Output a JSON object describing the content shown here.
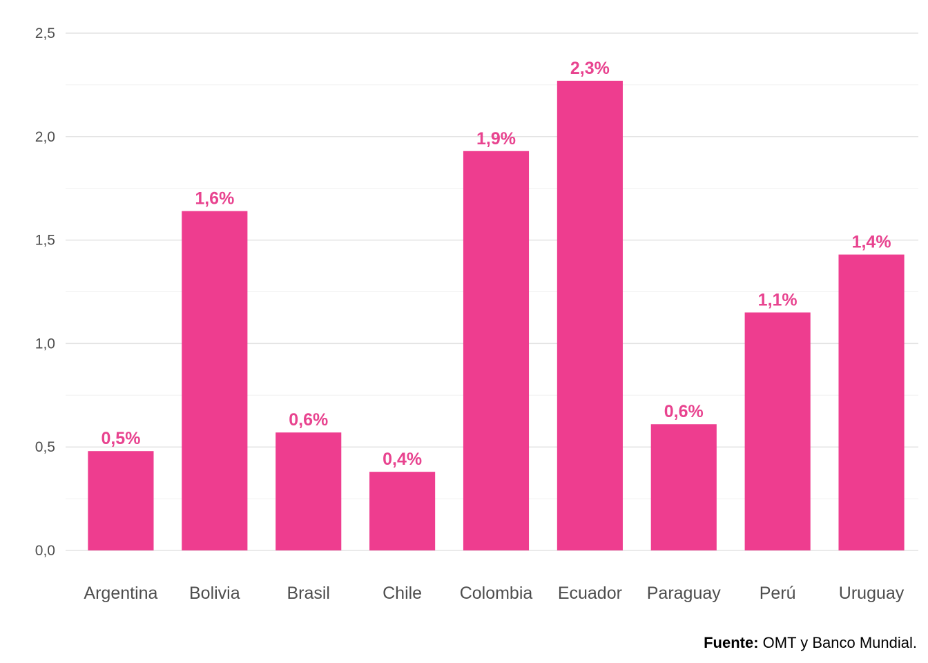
{
  "chart_data": {
    "type": "bar",
    "categories": [
      "Argentina",
      "Bolivia",
      "Brasil",
      "Chile",
      "Colombia",
      "Ecuador",
      "Paraguay",
      "Perú",
      "Uruguay"
    ],
    "values": [
      0.48,
      1.64,
      0.57,
      0.38,
      1.93,
      2.27,
      0.61,
      1.15,
      1.43
    ],
    "data_labels": [
      "0,5%",
      "1,6%",
      "0,6%",
      "0,4%",
      "1,9%",
      "2,3%",
      "0,6%",
      "1,1%",
      "1,4%"
    ],
    "ylim": [
      0,
      2.5
    ],
    "yticks": [
      0,
      0.5,
      1.0,
      1.5,
      2.0,
      2.5
    ],
    "ytick_labels": [
      "0,0",
      "0,5",
      "1,0",
      "1,5",
      "2,0",
      "2,5"
    ],
    "grid": true,
    "colors": {
      "bar": "#ee3d8f",
      "label": "#e8438f",
      "grid_major": "#e3e3e3",
      "grid_minor": "#f0f0f0"
    }
  },
  "source": {
    "label": "Fuente:",
    "text": " OMT y Banco Mundial."
  }
}
